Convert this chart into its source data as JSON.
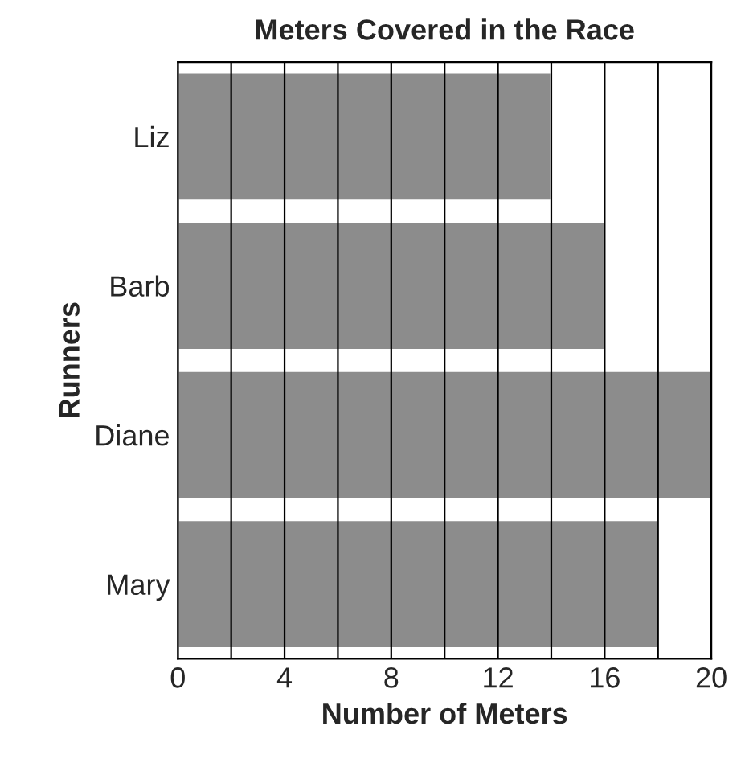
{
  "chart_data": {
    "type": "bar",
    "orientation": "horizontal",
    "title": "Meters Covered in the Race",
    "xlabel": "Number of Meters",
    "ylabel": "Runners",
    "categories": [
      "Liz",
      "Barb",
      "Diane",
      "Mary"
    ],
    "values": [
      14,
      16,
      20,
      18
    ],
    "color": "#8c8c8c",
    "xlim": [
      0,
      20
    ],
    "xticks": [
      0,
      {
        "value": 2,
        "label": null
      },
      4,
      {
        "value": 6,
        "label": null
      },
      8,
      {
        "value": 10,
        "label": null
      },
      12,
      {
        "value": 14,
        "label": null
      },
      16,
      {
        "value": 18,
        "label": null
      },
      20
    ],
    "grid": "x"
  }
}
